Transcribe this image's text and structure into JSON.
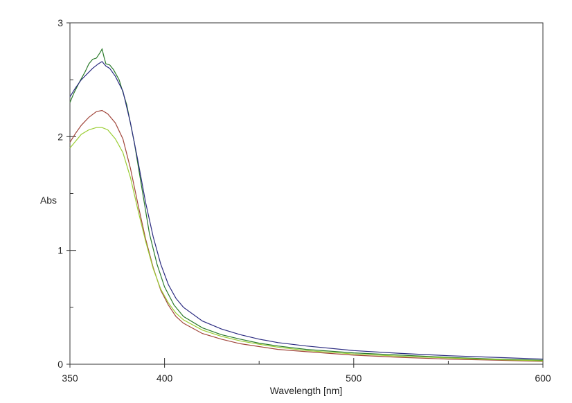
{
  "chart_data": {
    "type": "line",
    "title": "",
    "xlabel": "Wavelength [nm]",
    "ylabel": "Abs",
    "xlim": [
      350,
      600
    ],
    "ylim": [
      0,
      3
    ],
    "x_major_ticks": [
      350,
      400,
      500,
      600
    ],
    "x_minor_ticks": [
      450,
      550
    ],
    "y_major_ticks": [
      0,
      1,
      2,
      3
    ],
    "y_minor_ticks": [
      0.5,
      1.5,
      2.5
    ],
    "grid": false,
    "legend": "none",
    "series": [
      {
        "color": "#2a7a2a",
        "points": [
          [
            350,
            2.3
          ],
          [
            352,
            2.38
          ],
          [
            355,
            2.48
          ],
          [
            358,
            2.57
          ],
          [
            360,
            2.64
          ],
          [
            362,
            2.68
          ],
          [
            364,
            2.69
          ],
          [
            366,
            2.74
          ],
          [
            367,
            2.77
          ],
          [
            368,
            2.7
          ],
          [
            369,
            2.64
          ],
          [
            371,
            2.63
          ],
          [
            373,
            2.59
          ],
          [
            376,
            2.5
          ],
          [
            380,
            2.28
          ],
          [
            384,
            1.95
          ],
          [
            388,
            1.55
          ],
          [
            392,
            1.15
          ],
          [
            396,
            0.88
          ],
          [
            400,
            0.68
          ],
          [
            405,
            0.52
          ],
          [
            410,
            0.42
          ],
          [
            420,
            0.32
          ],
          [
            430,
            0.26
          ],
          [
            440,
            0.22
          ],
          [
            450,
            0.185
          ],
          [
            460,
            0.16
          ],
          [
            475,
            0.13
          ],
          [
            500,
            0.1
          ],
          [
            525,
            0.08
          ],
          [
            550,
            0.06
          ],
          [
            575,
            0.045
          ],
          [
            600,
            0.035
          ]
        ]
      },
      {
        "color": "#2a2a80",
        "points": [
          [
            350,
            2.35
          ],
          [
            353,
            2.43
          ],
          [
            356,
            2.5
          ],
          [
            359,
            2.55
          ],
          [
            362,
            2.6
          ],
          [
            365,
            2.64
          ],
          [
            367,
            2.66
          ],
          [
            369,
            2.62
          ],
          [
            371,
            2.6
          ],
          [
            374,
            2.53
          ],
          [
            378,
            2.4
          ],
          [
            382,
            2.12
          ],
          [
            386,
            1.78
          ],
          [
            390,
            1.42
          ],
          [
            394,
            1.12
          ],
          [
            398,
            0.88
          ],
          [
            402,
            0.7
          ],
          [
            406,
            0.58
          ],
          [
            410,
            0.5
          ],
          [
            420,
            0.38
          ],
          [
            430,
            0.31
          ],
          [
            440,
            0.26
          ],
          [
            450,
            0.22
          ],
          [
            460,
            0.19
          ],
          [
            475,
            0.16
          ],
          [
            500,
            0.12
          ],
          [
            525,
            0.095
          ],
          [
            550,
            0.075
          ],
          [
            575,
            0.06
          ],
          [
            600,
            0.045
          ]
        ]
      },
      {
        "color": "#a0453a",
        "points": [
          [
            350,
            1.95
          ],
          [
            353,
            2.03
          ],
          [
            356,
            2.1
          ],
          [
            360,
            2.17
          ],
          [
            364,
            2.22
          ],
          [
            367,
            2.23
          ],
          [
            370,
            2.2
          ],
          [
            374,
            2.12
          ],
          [
            378,
            1.98
          ],
          [
            382,
            1.72
          ],
          [
            386,
            1.4
          ],
          [
            390,
            1.1
          ],
          [
            394,
            0.85
          ],
          [
            398,
            0.65
          ],
          [
            402,
            0.52
          ],
          [
            406,
            0.42
          ],
          [
            410,
            0.36
          ],
          [
            420,
            0.27
          ],
          [
            430,
            0.22
          ],
          [
            440,
            0.18
          ],
          [
            450,
            0.155
          ],
          [
            460,
            0.13
          ],
          [
            475,
            0.11
          ],
          [
            500,
            0.08
          ],
          [
            525,
            0.06
          ],
          [
            550,
            0.045
          ],
          [
            575,
            0.035
          ],
          [
            600,
            0.025
          ]
        ]
      },
      {
        "color": "#9acd32",
        "points": [
          [
            350,
            1.9
          ],
          [
            353,
            1.96
          ],
          [
            356,
            2.02
          ],
          [
            360,
            2.06
          ],
          [
            364,
            2.08
          ],
          [
            367,
            2.08
          ],
          [
            370,
            2.06
          ],
          [
            374,
            1.98
          ],
          [
            378,
            1.86
          ],
          [
            382,
            1.64
          ],
          [
            386,
            1.35
          ],
          [
            390,
            1.08
          ],
          [
            394,
            0.84
          ],
          [
            398,
            0.66
          ],
          [
            402,
            0.54
          ],
          [
            406,
            0.45
          ],
          [
            410,
            0.39
          ],
          [
            420,
            0.3
          ],
          [
            430,
            0.245
          ],
          [
            440,
            0.205
          ],
          [
            450,
            0.175
          ],
          [
            460,
            0.15
          ],
          [
            475,
            0.12
          ],
          [
            500,
            0.09
          ],
          [
            525,
            0.07
          ],
          [
            550,
            0.055
          ],
          [
            575,
            0.04
          ],
          [
            600,
            0.03
          ]
        ]
      }
    ]
  }
}
